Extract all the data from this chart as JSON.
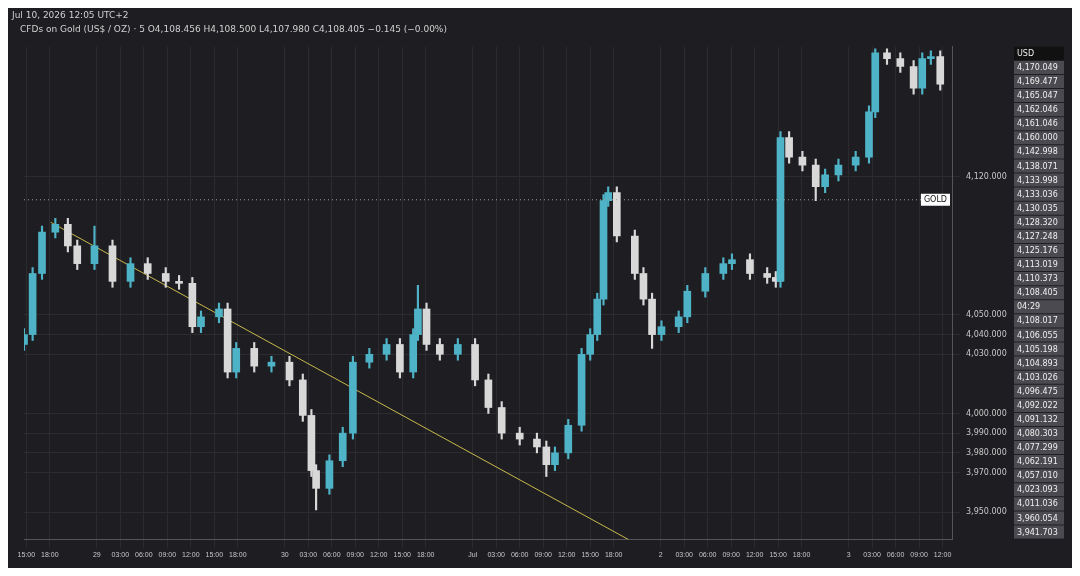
{
  "chart_data": {
    "type": "candlestick",
    "title": "CFDs on Gold (US$ / OZ) · 5  O4,108.456 H4,108.500 L4,107.980 C4,108.405 −0.145 (−0.00%)",
    "subtitle": "Jul 10, 2026 12:05 UTC+2",
    "xlim": [
      "--06-28T14:42",
      "--07-03T13:12"
    ],
    "xticks": [
      {
        "value": "--06-28T15:00",
        "label": "15:00"
      },
      {
        "value": "--06-28T18:00",
        "label": "18:00"
      },
      {
        "value": "--06-29T00:00",
        "label": "29"
      },
      {
        "value": "--06-29T03:00",
        "label": "03:00"
      },
      {
        "value": "--06-29T06:00",
        "label": "06:00"
      },
      {
        "value": "--06-29T09:00",
        "label": "09:00"
      },
      {
        "value": "--06-29T12:00",
        "label": "12:00"
      },
      {
        "value": "--06-29T15:00",
        "label": "15:00"
      },
      {
        "value": "--06-29T18:00",
        "label": "18:00"
      },
      {
        "value": "--06-30T00:00",
        "label": "30"
      },
      {
        "value": "--06-30T03:00",
        "label": "03:00"
      },
      {
        "value": "--06-30T06:00",
        "label": "06:00"
      },
      {
        "value": "--06-30T09:00",
        "label": "09:00"
      },
      {
        "value": "--06-30T12:00",
        "label": "12:00"
      },
      {
        "value": "--06-30T15:00",
        "label": "15:00"
      },
      {
        "value": "--06-30T18:00",
        "label": "18:00"
      },
      {
        "value": "--07-01T00:00",
        "label": "Jul"
      },
      {
        "value": "--07-01T03:00",
        "label": "03:00"
      },
      {
        "value": "--07-01T06:00",
        "label": "06:00"
      },
      {
        "value": "--07-01T09:00",
        "label": "09:00"
      },
      {
        "value": "--07-01T12:00",
        "label": "12:00"
      },
      {
        "value": "--07-01T15:00",
        "label": "15:00"
      },
      {
        "value": "--07-01T18:00",
        "label": "18:00"
      },
      {
        "value": "--07-02T00:00",
        "label": "2"
      },
      {
        "value": "--07-02T03:00",
        "label": "03:00"
      },
      {
        "value": "--07-02T06:00",
        "label": "06:00"
      },
      {
        "value": "--07-02T09:00",
        "label": "09:00"
      },
      {
        "value": "--07-02T12:00",
        "label": "12:00"
      },
      {
        "value": "--07-02T15:00",
        "label": "15:00"
      },
      {
        "value": "--07-02T18:00",
        "label": "18:00"
      },
      {
        "value": "--07-03T00:00",
        "label": "3"
      },
      {
        "value": "--07-03T03:00",
        "label": "03:00"
      },
      {
        "value": "--07-03T06:00",
        "label": "06:00"
      },
      {
        "value": "--07-03T09:00",
        "label": "09:00"
      },
      {
        "value": "--07-03T12:00",
        "label": "12:00"
      }
    ],
    "ylim": [
      3936,
      4186
    ],
    "yticks": [
      {
        "value": 3950,
        "label": "3,950.000"
      },
      {
        "value": 3970,
        "label": "3,970.000"
      },
      {
        "value": 3980,
        "label": "3,980.000"
      },
      {
        "value": 3990,
        "label": "3,990.000"
      },
      {
        "value": 4000,
        "label": "4,000.000"
      },
      {
        "value": 4030,
        "label": "4,030.000"
      },
      {
        "value": 4040,
        "label": "4,040.000"
      },
      {
        "value": 4050,
        "label": "4,050.000"
      },
      {
        "value": 4120,
        "label": "4,120.000"
      }
    ],
    "grid": true,
    "legend": false,
    "series": [
      {
        "x": [
          "--06-28T14:42",
          "--06-28T15:48",
          "--06-28T17:00",
          "--06-28T18:42",
          "--06-28T20:18",
          "--06-28T21:30",
          "--06-28T23:42",
          "--06-29T02:00",
          "--06-29T04:18",
          "--06-29T06:30",
          "--06-29T08:48",
          "--06-29T10:30",
          "--06-29T12:12",
          "--06-29T13:18",
          "--06-29T15:36",
          "--06-29T16:42",
          "--06-29T17:48",
          "--06-29T20:06",
          "--06-29T22:18",
          "--06-30T00:36",
          "--06-30T02:18",
          "--06-30T03:24",
          "--06-30T04:00",
          "--06-30T05:42",
          "--06-30T07:24",
          "--06-30T08:42",
          "--06-30T10:48",
          "--06-30T13:00",
          "--06-30T14:42",
          "--06-30T16:24",
          "--06-30T17:00",
          "--06-30T18:06",
          "--06-30T19:48",
          "--06-30T22:06",
          "--07-01T00:18",
          "--07-01T02:00",
          "--07-01T03:42",
          "--07-01T06:00",
          "--07-01T08:12",
          "--07-01T09:24",
          "--07-01T10:30",
          "--07-01T12:12",
          "--07-01T13:54",
          "--07-01T15:00",
          "--07-01T15:54",
          "--07-01T16:42",
          "--07-01T17:18",
          "--07-01T18:24",
          "--07-01T20:42",
          "--07-01T21:48",
          "--07-01T22:54",
          "--07-02T00:06",
          "--07-02T02:18",
          "--07-02T03:24",
          "--07-02T05:42",
          "--07-02T08:00",
          "--07-02T09:06",
          "--07-02T11:24",
          "--07-02T13:36",
          "--07-02T14:42",
          "--07-02T15:18",
          "--07-02T16:24",
          "--07-02T18:06",
          "--07-02T19:48",
          "--07-02T21:00",
          "--07-02T22:42",
          "--07-03T00:54",
          "--07-03T02:36",
          "--07-03T03:24",
          "--07-03T04:54",
          "--07-03T06:36",
          "--07-03T08:18",
          "--07-03T09:24",
          "--07-03T10:30",
          "--07-03T11:42"
        ],
        "ohlc": [
          [
            4035,
            4043,
            4032,
            4040
          ],
          [
            4040,
            4074,
            4037,
            4071
          ],
          [
            4071,
            4095,
            4068,
            4092
          ],
          [
            4092,
            4099,
            4089,
            4096
          ],
          [
            4096,
            4099,
            4082,
            4085
          ],
          [
            4085,
            4088,
            4073,
            4076
          ],
          [
            4076,
            4095,
            4073,
            4085
          ],
          [
            4085,
            4088,
            4064,
            4067
          ],
          [
            4067,
            4079,
            4064,
            4076
          ],
          [
            4076,
            4079,
            4068,
            4071
          ],
          [
            4071,
            4074,
            4064,
            4067
          ],
          [
            4067,
            4070,
            4063,
            4066
          ],
          [
            4066,
            4069,
            4041,
            4044
          ],
          [
            4044,
            4052,
            4041,
            4049
          ],
          [
            4049,
            4056,
            4046,
            4053
          ],
          [
            4053,
            4056,
            4018,
            4021
          ],
          [
            4021,
            4036,
            4018,
            4033
          ],
          [
            4033,
            4036,
            4021,
            4024
          ],
          [
            4024,
            4029,
            4021,
            4026
          ],
          [
            4026,
            4029,
            4014,
            4017
          ],
          [
            4017,
            4020,
            3996,
            3999
          ],
          [
            3999,
            4002,
            3968,
            3971
          ],
          [
            3971,
            3974,
            3951,
            3962
          ],
          [
            3962,
            3979,
            3959,
            3976
          ],
          [
            3976,
            3993,
            3973,
            3990
          ],
          [
            3990,
            4029,
            3987,
            4026
          ],
          [
            4026,
            4033,
            4023,
            4030
          ],
          [
            4030,
            4038,
            4027,
            4035
          ],
          [
            4035,
            4038,
            4018,
            4021
          ],
          [
            4021,
            4043,
            4018,
            4040
          ],
          [
            4040,
            4065,
            4037,
            4053
          ],
          [
            4053,
            4056,
            4032,
            4035
          ],
          [
            4035,
            4038,
            4027,
            4030
          ],
          [
            4030,
            4038,
            4027,
            4035
          ],
          [
            4035,
            4038,
            4014,
            4017
          ],
          [
            4017,
            4020,
            4000,
            4003
          ],
          [
            4003,
            4006,
            3987,
            3990
          ],
          [
            3990,
            3993,
            3984,
            3987
          ],
          [
            3987,
            3990,
            3980,
            3983
          ],
          [
            3983,
            3986,
            3968,
            3974
          ],
          [
            3974,
            3983,
            3971,
            3980
          ],
          [
            3980,
            3997,
            3977,
            3994
          ],
          [
            3994,
            4033,
            3991,
            4030
          ],
          [
            4030,
            4043,
            4027,
            4040
          ],
          [
            4040,
            4061,
            4037,
            4058
          ],
          [
            4058,
            4111,
            4055,
            4108
          ],
          [
            4108,
            4115,
            4105,
            4112
          ],
          [
            4112,
            4115,
            4087,
            4090
          ],
          [
            4090,
            4093,
            4068,
            4071
          ],
          [
            4071,
            4074,
            4055,
            4058
          ],
          [
            4058,
            4061,
            4033,
            4040
          ],
          [
            4040,
            4047,
            4037,
            4044
          ],
          [
            4044,
            4052,
            4041,
            4049
          ],
          [
            4049,
            4065,
            4046,
            4062
          ],
          [
            4062,
            4074,
            4059,
            4071
          ],
          [
            4071,
            4079,
            4068,
            4076
          ],
          [
            4076,
            4081,
            4073,
            4078
          ],
          [
            4078,
            4081,
            4068,
            4071
          ],
          [
            4071,
            4074,
            4066,
            4069
          ],
          [
            4069,
            4072,
            4064,
            4067
          ],
          [
            4067,
            4143,
            4064,
            4140
          ],
          [
            4140,
            4143,
            4127,
            4130
          ],
          [
            4130,
            4133,
            4123,
            4126
          ],
          [
            4126,
            4129,
            4108,
            4115
          ],
          [
            4115,
            4124,
            4112,
            4121
          ],
          [
            4121,
            4129,
            4118,
            4126
          ],
          [
            4126,
            4133,
            4123,
            4130
          ],
          [
            4130,
            4156,
            4127,
            4153
          ],
          [
            4153,
            4185,
            4150,
            4183
          ],
          [
            4183,
            4185,
            4177,
            4180
          ],
          [
            4180,
            4183,
            4173,
            4176
          ],
          [
            4176,
            4179,
            4162,
            4165
          ],
          [
            4165,
            4183,
            4162,
            4180
          ],
          [
            4180,
            4184,
            4177,
            4181
          ],
          [
            4181,
            4184,
            4164,
            4167
          ]
        ],
        "colors": [
          "#4fb3c8",
          "#4fb3c8",
          "#4fb3c8",
          "#4fb3c8",
          "#d8d8d8",
          "#d8d8d8",
          "#4fb3c8",
          "#d8d8d8",
          "#4fb3c8",
          "#d8d8d8",
          "#d8d8d8",
          "#d8d8d8",
          "#d8d8d8",
          "#4fb3c8",
          "#4fb3c8",
          "#d8d8d8",
          "#4fb3c8",
          "#d8d8d8",
          "#4fb3c8",
          "#d8d8d8",
          "#d8d8d8",
          "#d8d8d8",
          "#d8d8d8",
          "#4fb3c8",
          "#4fb3c8",
          "#4fb3c8",
          "#4fb3c8",
          "#4fb3c8",
          "#d8d8d8",
          "#4fb3c8",
          "#4fb3c8",
          "#d8d8d8",
          "#d8d8d8",
          "#4fb3c8",
          "#d8d8d8",
          "#d8d8d8",
          "#d8d8d8",
          "#d8d8d8",
          "#d8d8d8",
          "#d8d8d8",
          "#4fb3c8",
          "#4fb3c8",
          "#4fb3c8",
          "#4fb3c8",
          "#4fb3c8",
          "#4fb3c8",
          "#4fb3c8",
          "#d8d8d8",
          "#d8d8d8",
          "#d8d8d8",
          "#d8d8d8",
          "#4fb3c8",
          "#4fb3c8",
          "#4fb3c8",
          "#4fb3c8",
          "#4fb3c8",
          "#4fb3c8",
          "#d8d8d8",
          "#d8d8d8",
          "#d8d8d8",
          "#4fb3c8",
          "#d8d8d8",
          "#d8d8d8",
          "#d8d8d8",
          "#4fb3c8",
          "#4fb3c8",
          "#4fb3c8",
          "#4fb3c8",
          "#4fb3c8",
          "#d8d8d8",
          "#d8d8d8",
          "#d8d8d8",
          "#4fb3c8",
          "#4fb3c8",
          "#d8d8d8"
        ]
      },
      {
        "type": "line",
        "x": [
          "--06-28T18:06",
          "--07-01T19:54"
        ],
        "values": [
          4097,
          3936
        ],
        "color": "#c8b84a"
      }
    ],
    "ref_lines": [
      {
        "axis": "y",
        "value": 4108.405,
        "label": "GOLD",
        "color": "#9a9a9a",
        "line_style": "dotted"
      }
    ],
    "annotations": [
      "USD",
      "4,170.049",
      "4,169.477",
      "4,165.047",
      "4,162.046",
      "4,161.046",
      "4,160.000",
      "4,142.998",
      "4,138.071",
      "4,133.998",
      "4,133.036",
      "4,130.035",
      "4,128.320",
      "4,127.248",
      "4,125.176",
      "4,113.019",
      "4,110.373",
      "4,108.405",
      "04:29",
      "4,108.017",
      "4,106.055",
      "4,105.198",
      "4,104.893",
      "4,103.026",
      "4,096.475",
      "4,092.022",
      "4,091.132",
      "4,080.303",
      "4,077.299",
      "4,062.191",
      "4,057.010",
      "4,023.093",
      "4,011.036",
      "3,960.054",
      "3,941.703"
    ]
  }
}
